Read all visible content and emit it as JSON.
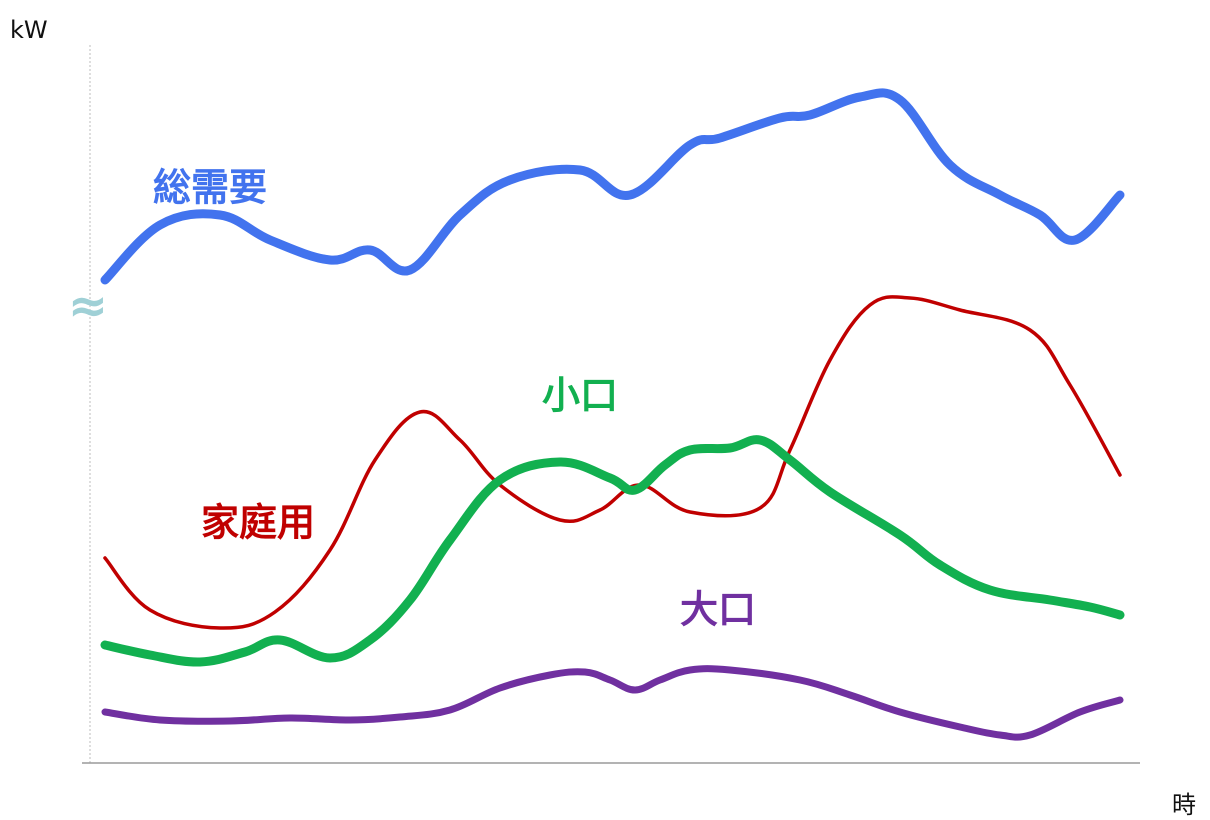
{
  "chart_data": {
    "type": "line",
    "ylabel": "kW",
    "xlabel": "時",
    "axis_break_symbol": "≈",
    "axis_break_color": "#9fd0d6",
    "grid": false,
    "legend": "inline labels",
    "series": [
      {
        "name": "総需要",
        "color": "#4273ee",
        "label_pos": [
          210,
          190
        ],
        "points": [
          [
            105,
            280
          ],
          [
            160,
            225
          ],
          [
            220,
            215
          ],
          [
            270,
            240
          ],
          [
            330,
            260
          ],
          [
            370,
            250
          ],
          [
            410,
            270
          ],
          [
            460,
            215
          ],
          [
            510,
            180
          ],
          [
            580,
            170
          ],
          [
            630,
            195
          ],
          [
            690,
            145
          ],
          [
            720,
            138
          ],
          [
            780,
            118
          ],
          [
            810,
            115
          ],
          [
            860,
            97
          ],
          [
            900,
            100
          ],
          [
            950,
            165
          ],
          [
            1000,
            195
          ],
          [
            1040,
            215
          ],
          [
            1075,
            240
          ],
          [
            1120,
            195
          ]
        ]
      },
      {
        "name": "家庭用",
        "color": "#c00000",
        "label_pos": [
          258,
          525
        ],
        "points": [
          [
            105,
            558
          ],
          [
            150,
            610
          ],
          [
            220,
            628
          ],
          [
            275,
            612
          ],
          [
            330,
            550
          ],
          [
            375,
            460
          ],
          [
            420,
            412
          ],
          [
            460,
            440
          ],
          [
            500,
            485
          ],
          [
            560,
            520
          ],
          [
            600,
            510
          ],
          [
            640,
            485
          ],
          [
            690,
            512
          ],
          [
            760,
            508
          ],
          [
            790,
            450
          ],
          [
            830,
            360
          ],
          [
            870,
            305
          ],
          [
            910,
            298
          ],
          [
            960,
            310
          ],
          [
            1030,
            330
          ],
          [
            1070,
            385
          ],
          [
            1120,
            475
          ]
        ]
      },
      {
        "name": "小口",
        "color": "#12b050",
        "label_pos": [
          580,
          398
        ],
        "points": [
          [
            105,
            645
          ],
          [
            150,
            655
          ],
          [
            200,
            662
          ],
          [
            245,
            652
          ],
          [
            280,
            640
          ],
          [
            330,
            658
          ],
          [
            370,
            640
          ],
          [
            410,
            600
          ],
          [
            450,
            540
          ],
          [
            500,
            480
          ],
          [
            560,
            462
          ],
          [
            610,
            478
          ],
          [
            635,
            490
          ],
          [
            665,
            465
          ],
          [
            690,
            450
          ],
          [
            730,
            448
          ],
          [
            760,
            440
          ],
          [
            790,
            460
          ],
          [
            830,
            492
          ],
          [
            900,
            535
          ],
          [
            940,
            565
          ],
          [
            990,
            590
          ],
          [
            1050,
            600
          ],
          [
            1090,
            607
          ],
          [
            1120,
            615
          ]
        ]
      },
      {
        "name": "大口",
        "color": "#7030a0",
        "label_pos": [
          718,
          612
        ],
        "points": [
          [
            105,
            712
          ],
          [
            160,
            720
          ],
          [
            230,
            721
          ],
          [
            290,
            718
          ],
          [
            350,
            720
          ],
          [
            400,
            717
          ],
          [
            450,
            710
          ],
          [
            500,
            688
          ],
          [
            550,
            675
          ],
          [
            585,
            672
          ],
          [
            610,
            680
          ],
          [
            635,
            690
          ],
          [
            660,
            680
          ],
          [
            690,
            670
          ],
          [
            730,
            670
          ],
          [
            800,
            680
          ],
          [
            850,
            695
          ],
          [
            900,
            712
          ],
          [
            960,
            727
          ],
          [
            1000,
            735
          ],
          [
            1030,
            735
          ],
          [
            1080,
            712
          ],
          [
            1120,
            700
          ]
        ]
      }
    ]
  }
}
